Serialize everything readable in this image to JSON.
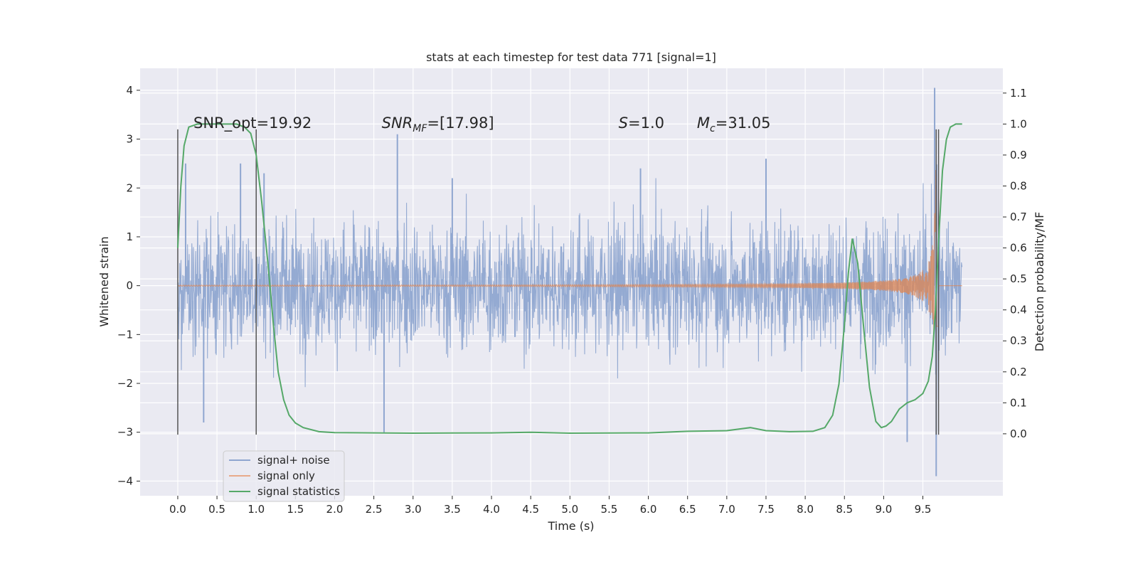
{
  "chart_data": {
    "type": "line",
    "title": "stats at each timestep for test data 771 [signal=1]",
    "xlabel": "Time (s)",
    "ylabel_left": "Whitened strain",
    "ylabel_right": "Detection probability/MF",
    "xlim": [
      -0.48,
      10.52
    ],
    "ylim_left": [
      -4.3,
      4.45
    ],
    "ylim_right": [
      -0.2,
      1.18
    ],
    "x_ticks": [
      "0.0",
      "0.5",
      "1.0",
      "1.5",
      "2.0",
      "2.5",
      "3.0",
      "3.5",
      "4.0",
      "4.5",
      "5.0",
      "5.5",
      "6.0",
      "6.5",
      "7.0",
      "7.5",
      "8.0",
      "8.5",
      "9.0",
      "9.5"
    ],
    "y_left_ticks": [
      "4",
      "3",
      "2",
      "1",
      "0",
      "−1",
      "−2",
      "−3",
      "−4"
    ],
    "y_right_ticks": [
      "1.1",
      "1.0",
      "0.9",
      "0.8",
      "0.7",
      "0.6",
      "0.5",
      "0.4",
      "0.3",
      "0.2",
      "0.1",
      "0.0"
    ],
    "grid": true,
    "legend_position": "lower-left",
    "series": [
      {
        "name": "signal+ noise",
        "color": "#8fa6d0",
        "axis": "left",
        "description_range": [
          -3.9,
          4.05
        ],
        "x_range": [
          0.0,
          10.0
        ],
        "peaks": [
          {
            "x": 0.1,
            "y": 2.5
          },
          {
            "x": 0.33,
            "y": -2.8
          },
          {
            "x": 0.8,
            "y": 2.5
          },
          {
            "x": 1.1,
            "y": 2.3
          },
          {
            "x": 2.8,
            "y": 3.1
          },
          {
            "x": 2.63,
            "y": -3.0
          },
          {
            "x": 3.5,
            "y": 2.2
          },
          {
            "x": 5.9,
            "y": 2.4
          },
          {
            "x": 7.5,
            "y": 2.6
          },
          {
            "x": 9.3,
            "y": -3.2
          },
          {
            "x": 9.65,
            "y": 4.05
          },
          {
            "x": 9.67,
            "y": -3.9
          }
        ]
      },
      {
        "name": "signal only",
        "color": "#dd8452",
        "axis": "left",
        "x_range": [
          0.0,
          10.0
        ],
        "chirp": {
          "merger_time": 9.68,
          "peak_amplitude": 3.3
        }
      },
      {
        "name": "signal statistics",
        "color": "#55a868",
        "axis": "right",
        "points": [
          [
            0.0,
            0.6
          ],
          [
            0.04,
            0.8
          ],
          [
            0.08,
            0.93
          ],
          [
            0.14,
            0.99
          ],
          [
            0.25,
            1.0
          ],
          [
            0.5,
            1.0
          ],
          [
            0.75,
            1.0
          ],
          [
            0.85,
            0.99
          ],
          [
            0.93,
            0.97
          ],
          [
            1.0,
            0.9
          ],
          [
            1.07,
            0.75
          ],
          [
            1.15,
            0.55
          ],
          [
            1.22,
            0.35
          ],
          [
            1.28,
            0.2
          ],
          [
            1.35,
            0.11
          ],
          [
            1.42,
            0.06
          ],
          [
            1.5,
            0.035
          ],
          [
            1.6,
            0.02
          ],
          [
            1.8,
            0.007
          ],
          [
            2.0,
            0.004
          ],
          [
            3.0,
            0.002
          ],
          [
            4.0,
            0.003
          ],
          [
            4.5,
            0.005
          ],
          [
            5.0,
            0.002
          ],
          [
            6.0,
            0.003
          ],
          [
            6.5,
            0.008
          ],
          [
            7.0,
            0.01
          ],
          [
            7.3,
            0.02
          ],
          [
            7.5,
            0.01
          ],
          [
            7.8,
            0.007
          ],
          [
            8.1,
            0.008
          ],
          [
            8.25,
            0.02
          ],
          [
            8.35,
            0.06
          ],
          [
            8.43,
            0.16
          ],
          [
            8.5,
            0.35
          ],
          [
            8.55,
            0.52
          ],
          [
            8.6,
            0.63
          ],
          [
            8.67,
            0.55
          ],
          [
            8.75,
            0.33
          ],
          [
            8.82,
            0.15
          ],
          [
            8.9,
            0.04
          ],
          [
            8.97,
            0.02
          ],
          [
            9.03,
            0.025
          ],
          [
            9.1,
            0.04
          ],
          [
            9.2,
            0.08
          ],
          [
            9.3,
            0.1
          ],
          [
            9.4,
            0.11
          ],
          [
            9.5,
            0.13
          ],
          [
            9.57,
            0.17
          ],
          [
            9.62,
            0.25
          ],
          [
            9.66,
            0.4
          ],
          [
            9.7,
            0.62
          ],
          [
            9.75,
            0.85
          ],
          [
            9.8,
            0.95
          ],
          [
            9.85,
            0.99
          ],
          [
            9.92,
            1.0
          ],
          [
            10.0,
            1.0
          ]
        ]
      }
    ],
    "vertical_lines": [
      0.0,
      1.0,
      9.67,
      9.7
    ],
    "vertical_line_range": [
      -3.05,
      3.2
    ],
    "annotations": [
      {
        "id": "snr_opt",
        "text": "SNR_opt=19.92",
        "x": 0.2
      },
      {
        "id": "snr_mf",
        "main": "SNR",
        "sub": "MF",
        "rest": "=[17.98]",
        "x": 2.6
      },
      {
        "id": "s_val",
        "main": "S",
        "rest": "=1.0",
        "x": 5.62
      },
      {
        "id": "mc_val",
        "main": "M",
        "sub": "c",
        "rest": "=31.05",
        "x": 6.62
      }
    ]
  }
}
